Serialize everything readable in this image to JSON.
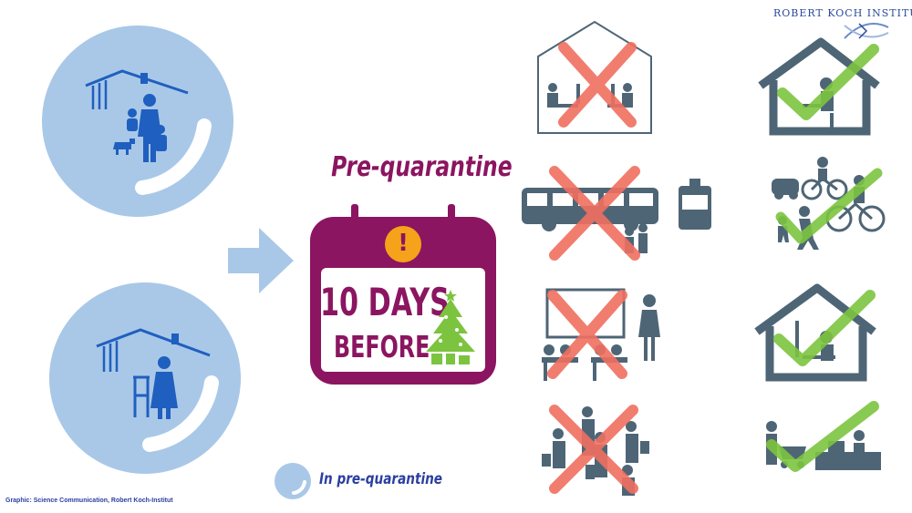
{
  "header": {
    "organization": "ROBERT KOCH INSTITUT"
  },
  "title": "Pre-quarantine",
  "calendar": {
    "line1": "10 DAYS",
    "line2": "BEFORE",
    "alert_symbol": "!"
  },
  "legend": {
    "label": "In pre-quarantine"
  },
  "credit": "Graphic: Science Communication, Robert Koch-Institut",
  "colors": {
    "circle": "#a9c8e8",
    "accent": "#8b1560",
    "icon_blue": "#1f5fbf",
    "icon_gray": "#4e6576",
    "cross": "#f07060",
    "check": "#7cc43f",
    "alert": "#f6a21a"
  },
  "avoid_icons": [
    "office-work-icon",
    "public-transport-icon",
    "classroom-icon",
    "shopping-crowd-icon"
  ],
  "allowed_icons": [
    "home-office-icon",
    "cycling-walking-icon",
    "home-schooling-icon",
    "grocery-delivery-icon"
  ]
}
